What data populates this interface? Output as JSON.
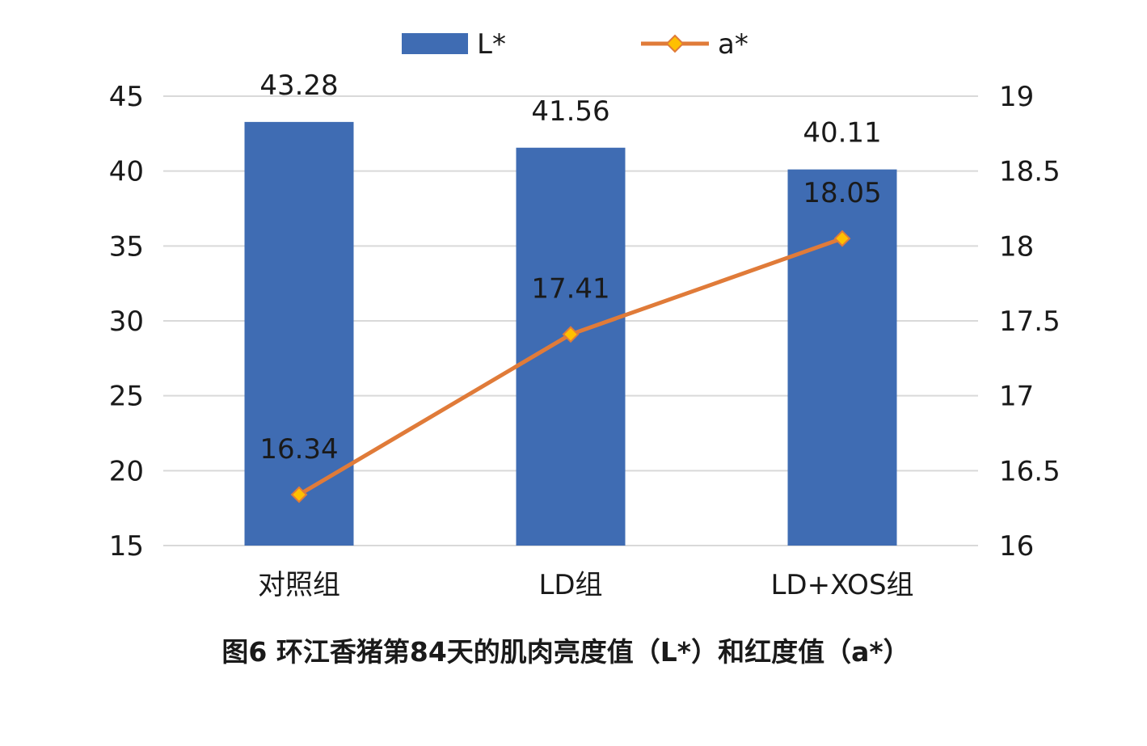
{
  "colors": {
    "bar": "#3F6CB3",
    "line": "#E07B39",
    "marker_fill": "#FFC000",
    "marker_stroke": "#E07B39",
    "grid": "#d9d9d9"
  },
  "chart_data": {
    "type": "bar",
    "caption": "图6 环江香猪第84天的肌肉亮度值（L*）和红度值（a*）",
    "categories": [
      "对照组",
      "LD组",
      "LD+XOS组"
    ],
    "series": [
      {
        "name": "L*",
        "type": "bar",
        "axis": "left",
        "values": [
          43.28,
          41.56,
          40.11
        ],
        "labels": [
          "43.28",
          "41.56",
          "40.11"
        ]
      },
      {
        "name": "a*",
        "type": "line",
        "axis": "right",
        "values": [
          16.34,
          17.41,
          18.05
        ],
        "labels": [
          "16.34",
          "17.41",
          "18.05"
        ]
      }
    ],
    "y_left": {
      "min": 15,
      "max": 45,
      "ticks": [
        "15",
        "20",
        "25",
        "30",
        "35",
        "40",
        "45"
      ]
    },
    "y_right": {
      "min": 16,
      "max": 19,
      "ticks": [
        "16",
        "16.5",
        "17",
        "17.5",
        "18",
        "18.5",
        "19"
      ]
    },
    "grid": true,
    "legend": "top-center"
  }
}
